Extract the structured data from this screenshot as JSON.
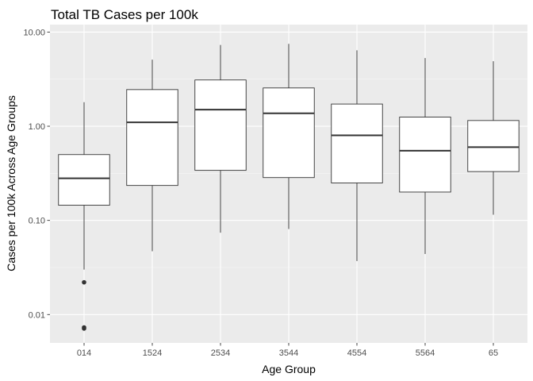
{
  "chart_data": {
    "type": "boxplot",
    "title": "Total TB Cases per 100k",
    "xlabel": "Age Group",
    "ylabel": "Cases per 100k Across Age Groups",
    "y_scale": "log10",
    "ylim": [
      0.005,
      12
    ],
    "y_ticks": [
      0.01,
      0.1,
      1,
      10
    ],
    "y_tick_labels": [
      "0.01",
      "0.10",
      "1.00",
      "10.00"
    ],
    "grid": true,
    "categories": [
      "014",
      "1524",
      "2534",
      "3544",
      "4554",
      "5564",
      "65"
    ],
    "boxes": [
      {
        "category": "014",
        "whisker_low": 0.03,
        "q1": 0.145,
        "median": 0.28,
        "q3": 0.5,
        "whisker_high": 1.8,
        "outliers": [
          0.022,
          0.0073,
          0.0071
        ]
      },
      {
        "category": "1524",
        "whisker_low": 0.047,
        "q1": 0.235,
        "median": 1.1,
        "q3": 2.45,
        "whisker_high": 5.1,
        "outliers": []
      },
      {
        "category": "2534",
        "whisker_low": 0.074,
        "q1": 0.34,
        "median": 1.5,
        "q3": 3.1,
        "whisker_high": 7.3,
        "outliers": []
      },
      {
        "category": "3544",
        "whisker_low": 0.081,
        "q1": 0.285,
        "median": 1.37,
        "q3": 2.55,
        "whisker_high": 7.5,
        "outliers": []
      },
      {
        "category": "4554",
        "whisker_low": 0.037,
        "q1": 0.25,
        "median": 0.8,
        "q3": 1.72,
        "whisker_high": 6.4,
        "outliers": []
      },
      {
        "category": "5564",
        "whisker_low": 0.044,
        "q1": 0.2,
        "median": 0.55,
        "q3": 1.25,
        "whisker_high": 5.3,
        "outliers": []
      },
      {
        "category": "65",
        "whisker_low": 0.115,
        "q1": 0.33,
        "median": 0.6,
        "q3": 1.15,
        "whisker_high": 4.9,
        "outliers": []
      }
    ],
    "colors": {
      "panel_background": "#ebebeb",
      "grid_major": "#ffffff",
      "grid_minor": "#f5f5f5",
      "box_fill": "#ffffff",
      "box_stroke": "#333333",
      "tick_text": "#4d4d4d"
    }
  }
}
